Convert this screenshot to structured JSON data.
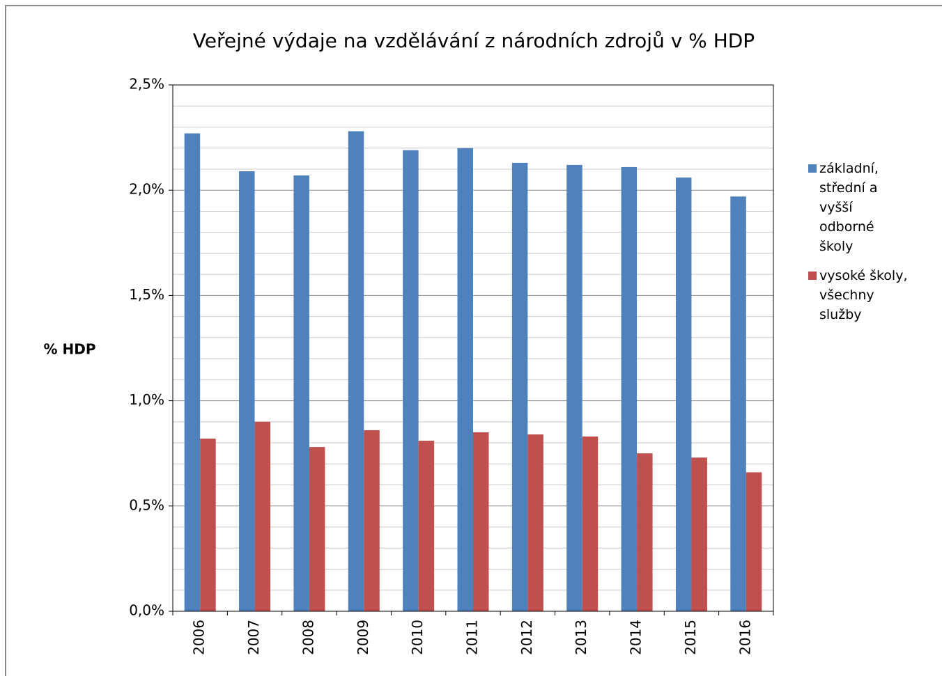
{
  "chart_data": {
    "type": "bar",
    "title": "Veřejné výdaje na vzdělávání z národních zdrojů v % HDP",
    "y_label": "% HDP",
    "categories": [
      "2006",
      "2007",
      "2008",
      "2009",
      "2010",
      "2011",
      "2012",
      "2013",
      "2014",
      "2015",
      "2016"
    ],
    "series": [
      {
        "name": "základní, střední a vyšší odborné školy",
        "color": "#4f81bd",
        "values": [
          2.27,
          2.09,
          2.07,
          2.28,
          2.19,
          2.2,
          2.13,
          2.12,
          2.11,
          2.06,
          1.97
        ]
      },
      {
        "name": "vysoké školy, všechny služby",
        "color": "#c0504d",
        "values": [
          0.82,
          0.9,
          0.78,
          0.86,
          0.81,
          0.85,
          0.84,
          0.83,
          0.75,
          0.73,
          0.66
        ]
      }
    ],
    "ylim": [
      0,
      2.5
    ],
    "yticks": [
      {
        "value": 0,
        "label": "0,0%"
      },
      {
        "value": 0.5,
        "label": "0,5%"
      },
      {
        "value": 1.0,
        "label": "1,0%"
      },
      {
        "value": 1.5,
        "label": "1,5%"
      },
      {
        "value": 2.0,
        "label": "2,0%"
      },
      {
        "value": 2.5,
        "label": "2,5%"
      }
    ],
    "yminorticks": [
      0.1,
      0.2,
      0.3,
      0.4,
      0.6,
      0.7,
      0.8,
      0.9,
      1.1,
      1.2,
      1.3,
      1.4,
      1.6,
      1.7,
      1.8,
      1.9,
      2.1,
      2.2,
      2.3,
      2.4
    ],
    "grid": true,
    "legend": "right"
  }
}
